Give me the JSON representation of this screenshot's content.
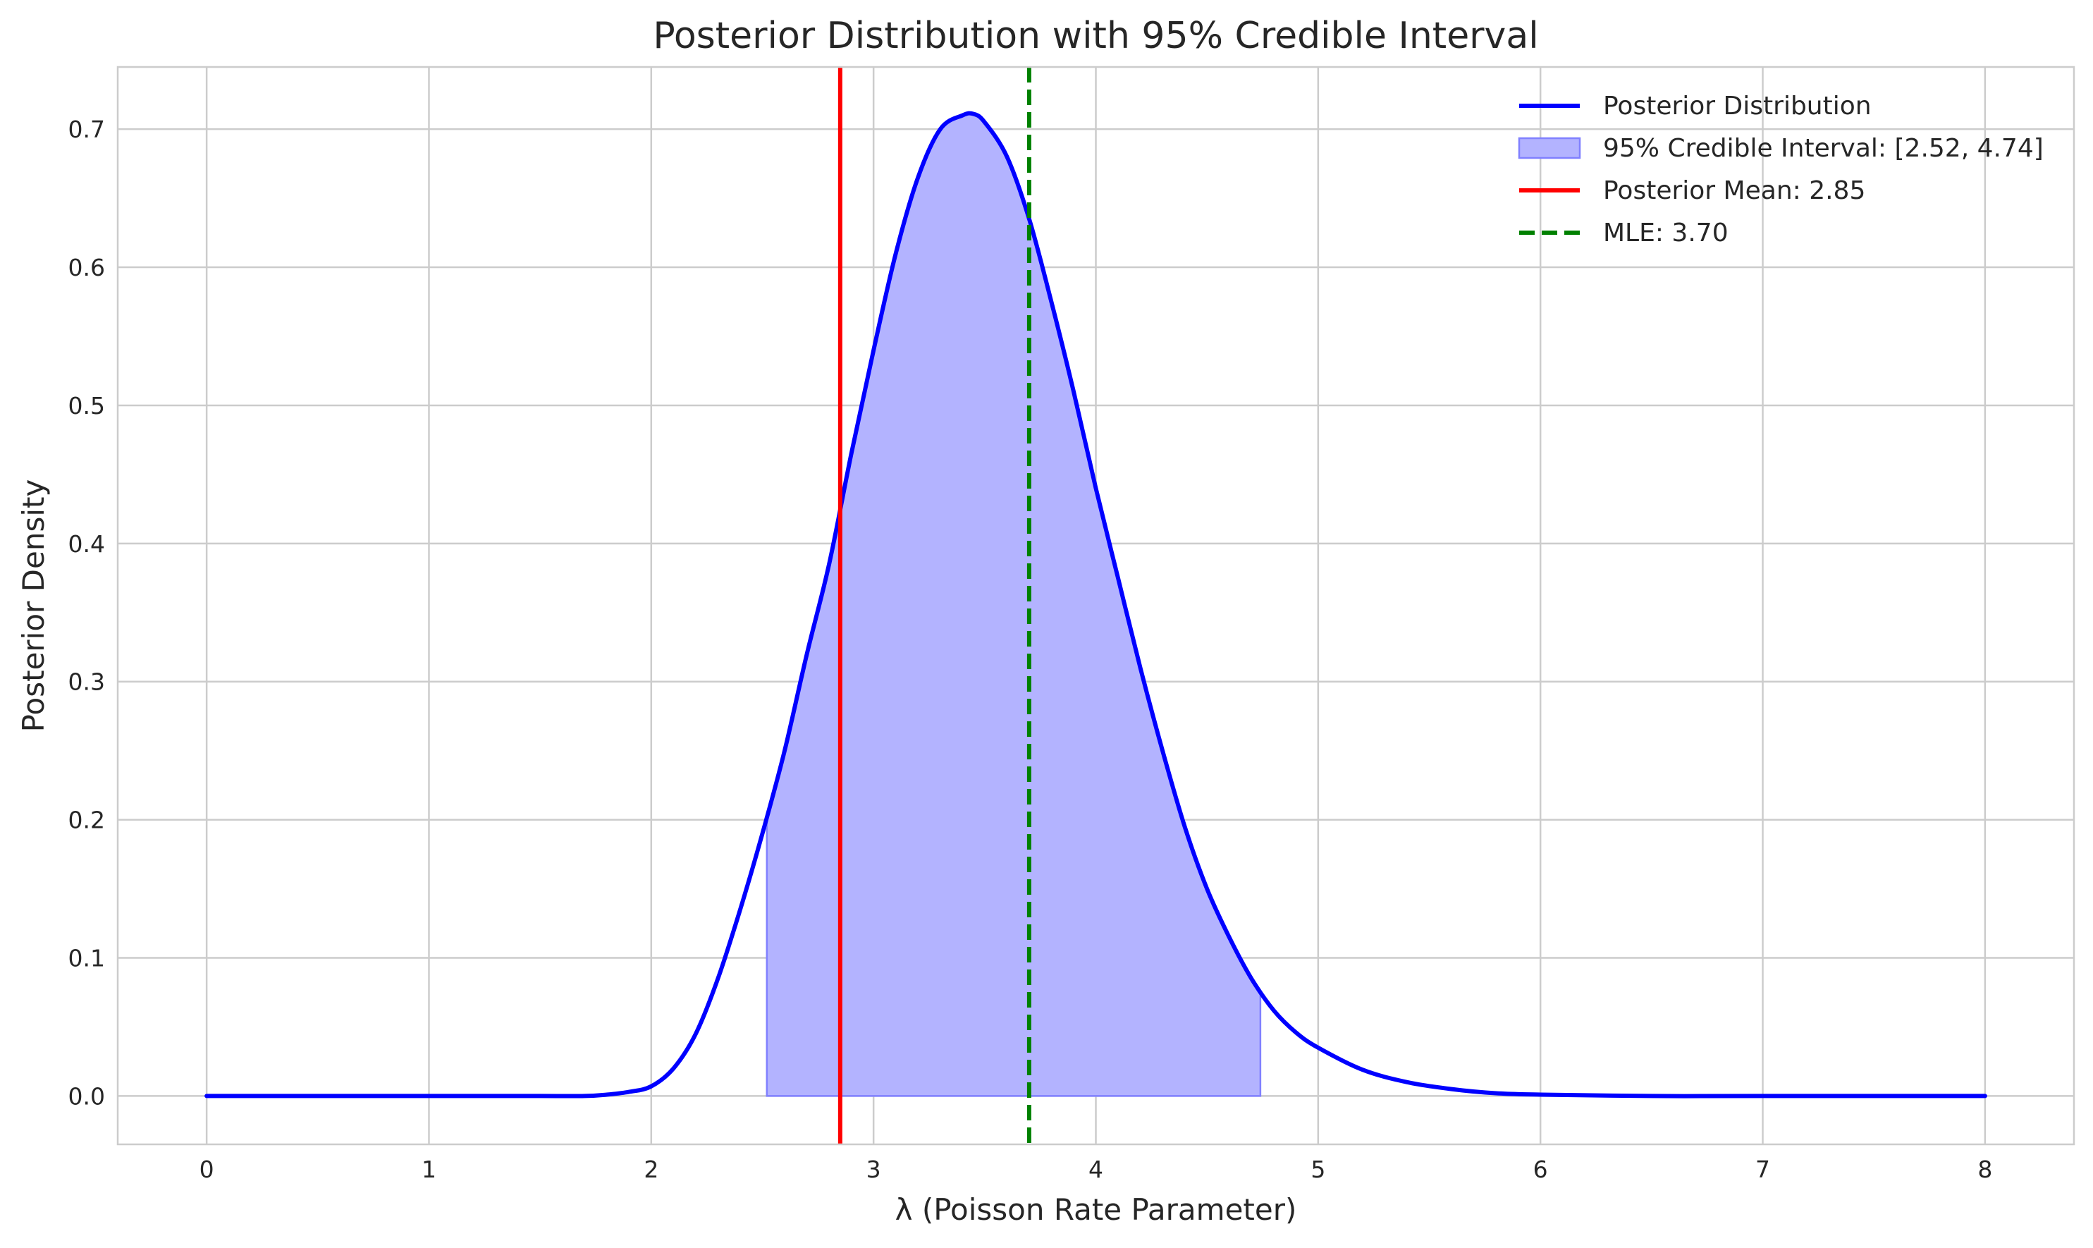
{
  "chart_data": {
    "type": "area",
    "title": "Posterior Distribution with 95% Credible Interval",
    "xlabel": "λ (Poisson Rate Parameter)",
    "ylabel": "Posterior Density",
    "xlim": [
      -0.4,
      8.4
    ],
    "ylim": [
      -0.035,
      0.745
    ],
    "xticks": [
      0,
      1,
      2,
      3,
      4,
      5,
      6,
      7,
      8
    ],
    "xtick_labels": [
      "0",
      "1",
      "2",
      "3",
      "4",
      "5",
      "6",
      "7",
      "8"
    ],
    "yticks": [
      0.0,
      0.1,
      0.2,
      0.3,
      0.4,
      0.5,
      0.6,
      0.7
    ],
    "ytick_labels": [
      "0.0",
      "0.1",
      "0.2",
      "0.3",
      "0.4",
      "0.5",
      "0.6",
      "0.7"
    ],
    "grid": true,
    "legend_position": "top-right",
    "posterior_curve": {
      "x": [
        0,
        1.0,
        1.5,
        1.7,
        1.8,
        1.9,
        2.0,
        2.1,
        2.2,
        2.3,
        2.4,
        2.5,
        2.6,
        2.7,
        2.8,
        2.9,
        3.0,
        3.1,
        3.2,
        3.3,
        3.4,
        3.45,
        3.5,
        3.6,
        3.7,
        3.8,
        3.9,
        4.0,
        4.1,
        4.2,
        4.3,
        4.4,
        4.5,
        4.6,
        4.7,
        4.8,
        4.9,
        5.0,
        5.2,
        5.4,
        5.6,
        5.8,
        6.0,
        6.5,
        7.0,
        8.0
      ],
      "y": [
        0.0,
        0.0,
        0.0,
        0.0,
        0.001,
        0.003,
        0.007,
        0.02,
        0.045,
        0.085,
        0.135,
        0.19,
        0.25,
        0.32,
        0.385,
        0.465,
        0.54,
        0.61,
        0.665,
        0.7,
        0.71,
        0.711,
        0.705,
        0.68,
        0.635,
        0.575,
        0.51,
        0.44,
        0.375,
        0.31,
        0.25,
        0.195,
        0.15,
        0.115,
        0.085,
        0.062,
        0.046,
        0.035,
        0.019,
        0.01,
        0.005,
        0.002,
        0.001,
        0.0,
        0.0,
        0.0
      ]
    },
    "credible_interval": [
      2.52,
      4.74
    ],
    "posterior_mean": 2.85,
    "mle": 3.7,
    "series": [
      {
        "name": "Posterior Distribution",
        "style": "line",
        "color": "#0000ff"
      },
      {
        "name": "95% Credible Interval: [2.52, 4.74]",
        "style": "fill",
        "color": "#b3b3ff",
        "edge_color": "#8080ff"
      },
      {
        "name": "Posterior Mean: 2.85",
        "style": "vline",
        "color": "#ff0000"
      },
      {
        "name": "MLE: 3.70",
        "style": "dashed-vline",
        "color": "#008000"
      }
    ],
    "colors": {
      "grid": "#cccccc",
      "axes_edge": "#cccccc",
      "text": "#262626"
    }
  }
}
